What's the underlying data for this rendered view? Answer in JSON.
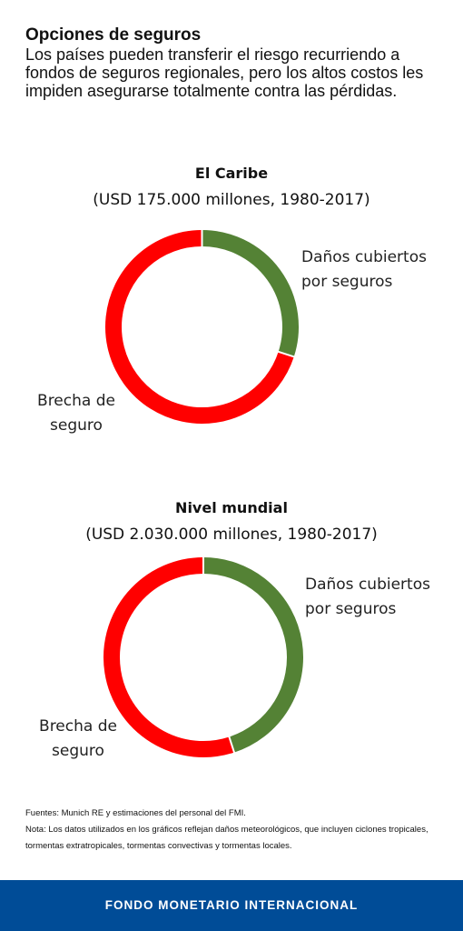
{
  "header": {
    "title": "Opciones de seguros",
    "subtitle": "Los países pueden transferir el riesgo recurriendo a fondos de seguros regionales, pero los altos costos les impiden asegurarse totalmente contra las pérdidas."
  },
  "chart_data": [
    {
      "type": "pie",
      "title": "El Caribe",
      "subtitle": "(USD 175.000 millones, 1980-2017)",
      "categories": [
        "Daños cubiertos por seguros",
        "Brecha de seguro"
      ],
      "values": [
        30,
        70
      ],
      "colors": [
        "#548235",
        "#ff0000"
      ],
      "labels": {
        "covered": [
          "Daños cubiertos",
          "por seguros"
        ],
        "gap": [
          "Brecha de",
          "seguro"
        ]
      }
    },
    {
      "type": "pie",
      "title": "Nivel mundial",
      "subtitle": "(USD 2.030.000 millones, 1980-2017)",
      "categories": [
        "Daños cubiertos por seguros",
        "Brecha de seguro"
      ],
      "values": [
        45,
        55
      ],
      "colors": [
        "#548235",
        "#ff0000"
      ],
      "labels": {
        "covered": [
          "Daños cubiertos",
          "por seguros"
        ],
        "gap": [
          "Brecha de",
          "seguro"
        ]
      }
    }
  ],
  "notes": {
    "sources": "Fuentes: Munich RE y estimaciones del personal del FMI.",
    "note": "Nota: Los datos utilizados en los gráficos reflejan daños meteorológicos, que incluyen ciclones tropicales, tormentas extratropicales, tormentas convectivas y tormentas locales."
  },
  "footer": {
    "text": "FONDO MONETARIO INTERNACIONAL",
    "color": "#004c97"
  }
}
